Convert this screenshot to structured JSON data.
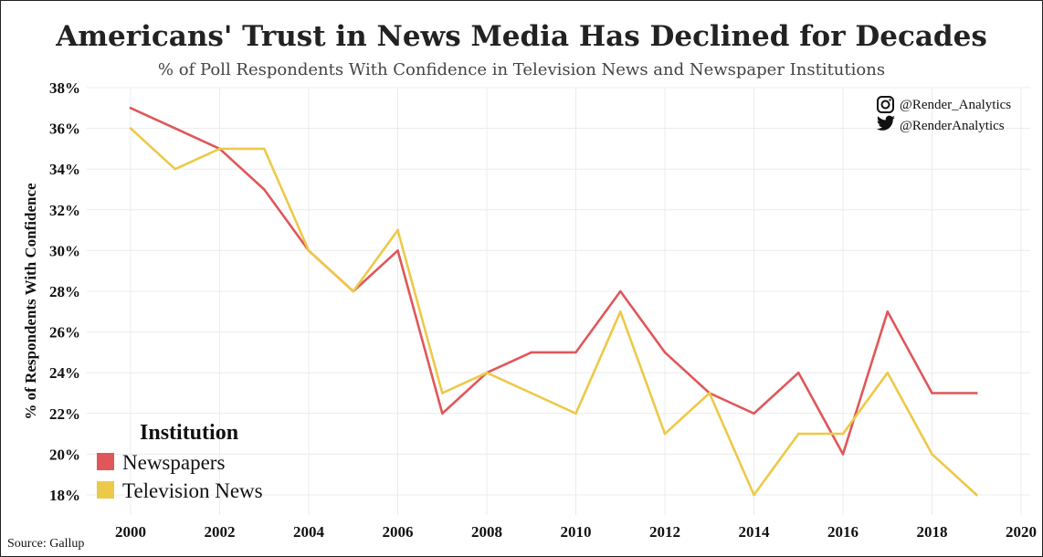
{
  "chart_data": {
    "type": "line",
    "title": "Americans' Trust in News Media Has Declined for Decades",
    "subtitle": "% of Poll Respondents With Confidence in Television News and Newspaper Institutions",
    "ylabel": "% of Respondents With Confidence",
    "xlabel": "",
    "xlim": [
      2000,
      2020
    ],
    "ylim": [
      17,
      38.5
    ],
    "x_ticks": [
      2000,
      2002,
      2004,
      2006,
      2008,
      2010,
      2012,
      2014,
      2016,
      2018,
      2020
    ],
    "x_tick_labels": [
      "2000",
      "2002",
      "2004",
      "2006",
      "2008",
      "2010",
      "2012",
      "2014",
      "2016",
      "2018",
      "2020"
    ],
    "y_ticks": [
      18,
      20,
      22,
      24,
      26,
      28,
      30,
      32,
      34,
      36,
      38
    ],
    "y_tick_labels": [
      "18%",
      "20%",
      "22%",
      "24%",
      "26%",
      "28%",
      "30%",
      "32%",
      "34%",
      "36%",
      "38%"
    ],
    "grid": true,
    "legend_title": "Institution",
    "legend_position": "bottom-left",
    "x": [
      2000,
      2001,
      2002,
      2003,
      2004,
      2005,
      2006,
      2007,
      2008,
      2009,
      2010,
      2011,
      2012,
      2013,
      2014,
      2015,
      2016,
      2017,
      2018,
      2019
    ],
    "series": [
      {
        "name": "Newspapers",
        "color": "#e05759",
        "values": [
          37,
          36,
          35,
          33,
          30,
          28,
          30,
          22,
          24,
          25,
          25,
          28,
          25,
          23,
          22,
          24,
          20,
          27,
          23,
          23
        ]
      },
      {
        "name": "Television News",
        "color": "#edc949",
        "values": [
          36,
          34,
          35,
          35,
          30,
          28,
          31,
          23,
          24,
          23,
          22,
          27,
          21,
          23,
          18,
          21,
          21,
          24,
          20,
          18
        ]
      }
    ]
  },
  "source": "Source: Gallup",
  "social": {
    "instagram": "@Render_Analytics",
    "twitter": "@RenderAnalytics",
    "instagram_icon": "instagram-icon",
    "twitter_icon": "twitter-icon"
  }
}
